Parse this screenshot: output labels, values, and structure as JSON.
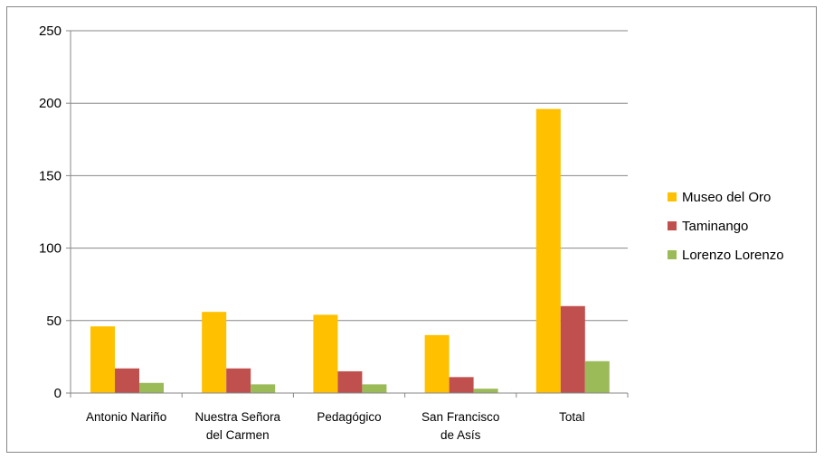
{
  "chart_data": {
    "type": "bar",
    "categories": [
      [
        "Antonio Nariño"
      ],
      [
        "Nuestra Señora",
        "del Carmen"
      ],
      [
        "Pedagógico"
      ],
      [
        "San Francisco",
        "de Asís"
      ],
      [
        "Total"
      ]
    ],
    "series": [
      {
        "name": "Museo del Oro",
        "color": "#FFC000",
        "values": [
          46,
          56,
          54,
          40,
          196
        ]
      },
      {
        "name": "Taminango",
        "color": "#C0504D",
        "values": [
          17,
          17,
          15,
          11,
          60
        ]
      },
      {
        "name": "Lorenzo Lorenzo",
        "color": "#9BBB59",
        "values": [
          7,
          6,
          6,
          3,
          22
        ]
      }
    ],
    "ylim": [
      0,
      250
    ],
    "yticks": [
      0,
      50,
      100,
      150,
      200,
      250
    ],
    "grid": true,
    "legend": "right"
  }
}
